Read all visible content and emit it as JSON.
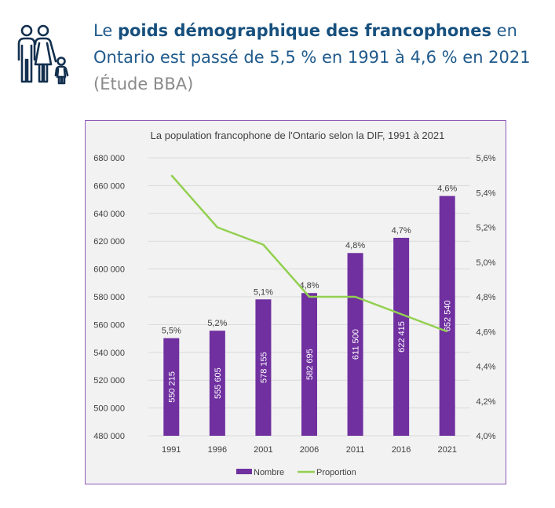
{
  "headline": {
    "icon": "family-icon",
    "prefix": "Le ",
    "bold": "poids démographique des francophones",
    "rest": " en Ontario est passé de 5,5 % en 1991 à 4,6 % en 2021 ",
    "source": "(Étude BBA)"
  },
  "colors": {
    "bar": "#7030a0",
    "line": "#92d050",
    "headline": "#1f5a8c",
    "border": "#8e5bb8"
  },
  "chart_data": {
    "type": "bar",
    "title": "La population francophone de l'Ontario selon la DIF, 1991 à 2021",
    "categories": [
      "1991",
      "1996",
      "2001",
      "2006",
      "2011",
      "2016",
      "2021"
    ],
    "series": [
      {
        "name": "Nombre",
        "type": "bar",
        "axis": "left",
        "values": [
          550215,
          555605,
          578155,
          582695,
          611500,
          622415,
          652540
        ],
        "labels": [
          "550 215",
          "555 605",
          "578 155",
          "582 695",
          "611 500",
          "622 415",
          "652 540"
        ]
      },
      {
        "name": "Proportion",
        "type": "line",
        "axis": "right",
        "values": [
          5.5,
          5.2,
          5.1,
          4.8,
          4.8,
          4.7,
          4.6
        ],
        "labels": [
          "5,5%",
          "5,2%",
          "5,1%",
          "4,8%",
          "4,8%",
          "4,7%",
          "4,6%"
        ]
      }
    ],
    "y_left": {
      "ylim": [
        480000,
        680000
      ],
      "ticks": [
        480000,
        500000,
        520000,
        540000,
        560000,
        580000,
        600000,
        620000,
        640000,
        660000,
        680000
      ],
      "tick_labels": [
        "480 000",
        "500 000",
        "520 000",
        "540 000",
        "560 000",
        "580 000",
        "600 000",
        "620 000",
        "640 000",
        "660 000",
        "680 000"
      ]
    },
    "y_right": {
      "ylim": [
        4.0,
        5.6
      ],
      "ticks": [
        4.0,
        4.2,
        4.4,
        4.6,
        4.8,
        5.0,
        5.2,
        5.4,
        5.6
      ],
      "tick_labels": [
        "4,0%",
        "4,2%",
        "4,4%",
        "4,6%",
        "4,8%",
        "5,0%",
        "5,2%",
        "5,4%",
        "5,6%"
      ]
    },
    "grid": true,
    "legend": {
      "position": "bottom",
      "entries": [
        "Nombre",
        "Proportion"
      ]
    }
  }
}
